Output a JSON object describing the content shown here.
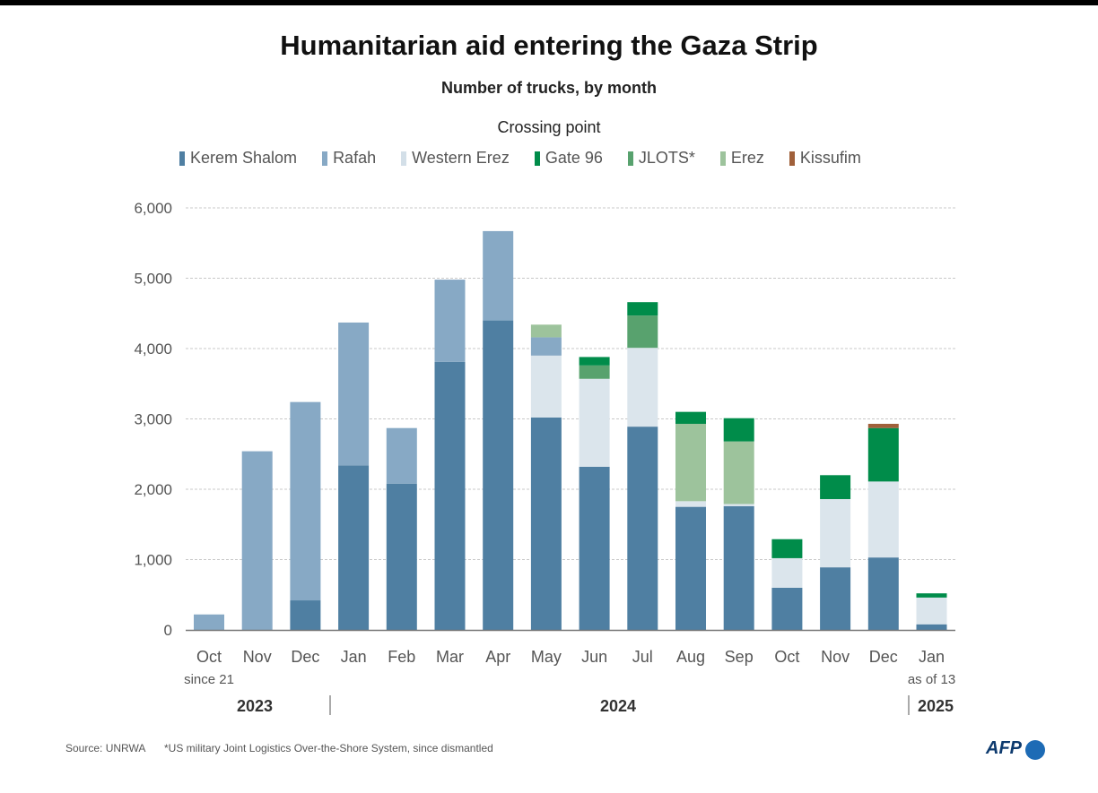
{
  "chart_data": {
    "type": "bar",
    "stacked": true,
    "title": "Humanitarian aid entering the Gaza Strip",
    "subtitle": "Number of trucks, by month",
    "legend_title": "Crossing point",
    "legend_position": "top",
    "ylim": [
      0,
      6000
    ],
    "yticks": [
      "0",
      "1,000",
      "2,000",
      "3,000",
      "4,000",
      "5,000",
      "6,000"
    ],
    "grid": true,
    "categories": [
      "Oct",
      "Nov",
      "Dec",
      "Jan",
      "Feb",
      "Mar",
      "Apr",
      "May",
      "Jun",
      "Jul",
      "Aug",
      "Sep",
      "Oct",
      "Nov",
      "Dec",
      "Jan"
    ],
    "category_notes": [
      "since 21",
      "",
      "",
      "",
      "",
      "",
      "",
      "",
      "",
      "",
      "",
      "",
      "",
      "",
      "",
      "as of 13"
    ],
    "years": [
      "2023",
      "2024",
      "2025"
    ],
    "series": [
      {
        "name": "Kerem Shalom",
        "color": "#4f7fa2",
        "values": [
          0,
          0,
          420,
          2340,
          2080,
          3810,
          4400,
          3020,
          2320,
          2890,
          1750,
          1760,
          600,
          890,
          1030,
          80
        ]
      },
      {
        "name": "Rafah",
        "color": "#87a9c5",
        "values": [
          220,
          2540,
          2820,
          2030,
          790,
          1170,
          1270,
          260,
          0,
          0,
          0,
          0,
          0,
          0,
          0,
          0
        ]
      },
      {
        "name": "Western Erez",
        "color": "#dbe5ec",
        "values": [
          0,
          0,
          0,
          0,
          0,
          0,
          0,
          880,
          1250,
          1120,
          80,
          30,
          420,
          970,
          1080,
          380
        ]
      },
      {
        "name": "Gate 96",
        "color": "#008c4a",
        "values": [
          0,
          0,
          0,
          0,
          0,
          0,
          0,
          0,
          120,
          190,
          170,
          330,
          270,
          340,
          760,
          60
        ]
      },
      {
        "name": "JLOTS*",
        "color": "#58a26e",
        "values": [
          0,
          0,
          0,
          0,
          0,
          0,
          0,
          0,
          190,
          460,
          0,
          0,
          0,
          0,
          0,
          0
        ]
      },
      {
        "name": "Erez",
        "color": "#9dc39c",
        "values": [
          0,
          0,
          0,
          0,
          0,
          0,
          0,
          180,
          0,
          0,
          1100,
          890,
          0,
          0,
          0,
          0
        ]
      },
      {
        "name": "Kissufim",
        "color": "#a0603a",
        "values": [
          0,
          0,
          0,
          0,
          0,
          0,
          0,
          0,
          0,
          0,
          0,
          0,
          0,
          0,
          60,
          0
        ]
      }
    ],
    "stack_order": [
      "Kerem Shalom",
      "Western Erez",
      "Rafah",
      "Erez",
      "JLOTS*",
      "Gate 96",
      "Kissufim"
    ]
  },
  "footer": {
    "source": "Source: UNRWA",
    "note": "*US military Joint Logistics Over-the-Shore System, since dismantled",
    "logo": "AFP"
  }
}
